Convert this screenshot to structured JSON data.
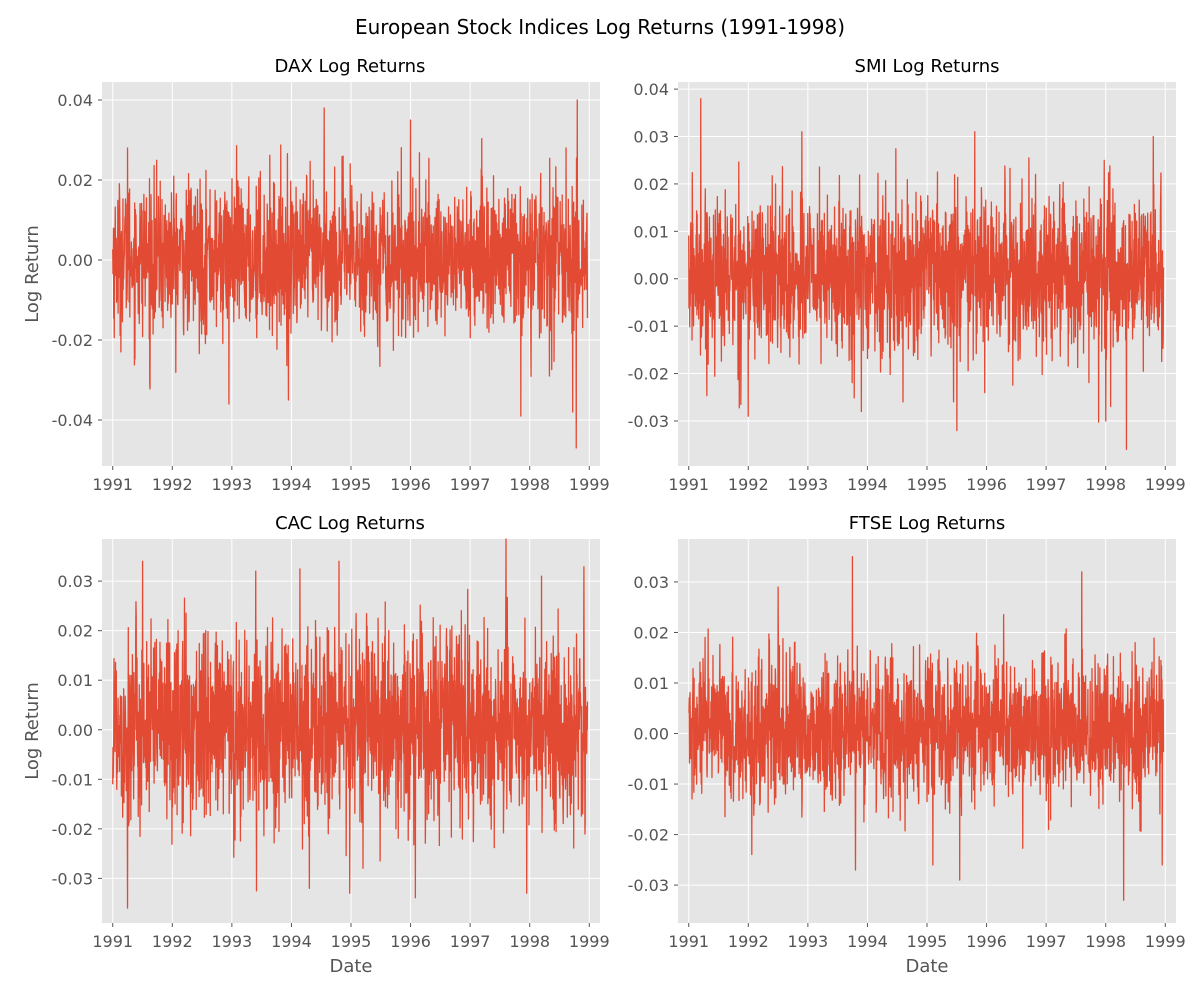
{
  "figure": {
    "title": "European Stock Indices Log Returns (1991-1998)"
  },
  "style": {
    "panel_background": "#e5e5e5",
    "grid_color": "#ffffff",
    "line_color": "#e24a33",
    "text_color": "#555555"
  },
  "chart_data": [
    {
      "type": "line",
      "title": "DAX Log Returns",
      "xlabel": "",
      "ylabel": "Log Return",
      "xlim": [
        1990.82,
        1999.18
      ],
      "ylim": [
        -0.0515,
        0.0445
      ],
      "x_ticks": [
        "1991",
        "1992",
        "1993",
        "1994",
        "1995",
        "1996",
        "1997",
        "1998",
        "1999"
      ],
      "y_ticks": [
        "-0.04",
        "-0.02",
        "0.00",
        "0.02",
        "0.04"
      ],
      "y_tick_values": [
        -0.04,
        -0.02,
        0.0,
        0.02,
        0.04
      ],
      "series": [
        {
          "x_range": [
            1991.0,
            1998.97
          ],
          "n_points": 1860,
          "mean": 0.0006,
          "std": 0.0102,
          "x_at_min_max_style_points": [],
          "extremes": [
            {
              "x": 1991.25,
              "y": 0.028
            },
            {
              "x": 1991.62,
              "y": -0.031
            },
            {
              "x": 1992.95,
              "y": -0.036
            },
            {
              "x": 1993.95,
              "y": -0.035
            },
            {
              "x": 1994.55,
              "y": 0.038
            },
            {
              "x": 1996.0,
              "y": 0.035
            },
            {
              "x": 1997.85,
              "y": -0.039
            },
            {
              "x": 1998.72,
              "y": -0.038
            },
            {
              "x": 1998.8,
              "y": 0.04
            },
            {
              "x": 1998.78,
              "y": -0.047
            }
          ]
        }
      ]
    },
    {
      "type": "line",
      "title": "SMI Log Returns",
      "xlabel": "",
      "ylabel": "",
      "xlim": [
        1990.82,
        1999.18
      ],
      "ylim": [
        -0.0395,
        0.0415
      ],
      "x_ticks": [
        "1991",
        "1992",
        "1993",
        "1994",
        "1995",
        "1996",
        "1997",
        "1998",
        "1999"
      ],
      "y_ticks": [
        "-0.03",
        "-0.02",
        "-0.01",
        "0.00",
        "0.01",
        "0.02",
        "0.03",
        "0.04"
      ],
      "y_tick_values": [
        -0.03,
        -0.02,
        -0.01,
        0.0,
        0.01,
        0.02,
        0.03,
        0.04
      ],
      "series": [
        {
          "x_range": [
            1991.0,
            1998.97
          ],
          "n_points": 1860,
          "mean": 0.0008,
          "std": 0.0092,
          "extremes": [
            {
              "x": 1991.2,
              "y": 0.038
            },
            {
              "x": 1992.0,
              "y": -0.029
            },
            {
              "x": 1992.9,
              "y": 0.031
            },
            {
              "x": 1993.9,
              "y": -0.028
            },
            {
              "x": 1995.5,
              "y": -0.032
            },
            {
              "x": 1995.8,
              "y": 0.031
            },
            {
              "x": 1998.0,
              "y": -0.03
            },
            {
              "x": 1998.35,
              "y": -0.036
            },
            {
              "x": 1998.8,
              "y": 0.03
            }
          ]
        }
      ]
    },
    {
      "type": "line",
      "title": "CAC Log Returns",
      "xlabel": "Date",
      "ylabel": "Log Return",
      "xlim": [
        1990.82,
        1999.18
      ],
      "ylim": [
        -0.039,
        0.0385
      ],
      "x_ticks": [
        "1991",
        "1992",
        "1993",
        "1994",
        "1995",
        "1996",
        "1997",
        "1998",
        "1999"
      ],
      "y_ticks": [
        "-0.03",
        "-0.02",
        "-0.01",
        "0.00",
        "0.01",
        "0.02",
        "0.03"
      ],
      "y_tick_values": [
        -0.03,
        -0.02,
        -0.01,
        0.0,
        0.01,
        0.02,
        0.03
      ],
      "series": [
        {
          "x_range": [
            1991.0,
            1998.97
          ],
          "n_points": 1860,
          "mean": 0.0004,
          "std": 0.0108,
          "extremes": [
            {
              "x": 1991.25,
              "y": -0.036
            },
            {
              "x": 1991.5,
              "y": 0.034
            },
            {
              "x": 1993.4,
              "y": 0.032
            },
            {
              "x": 1994.3,
              "y": -0.032
            },
            {
              "x": 1994.8,
              "y": 0.034
            },
            {
              "x": 1994.98,
              "y": -0.033
            },
            {
              "x": 1997.95,
              "y": -0.033
            },
            {
              "x": 1998.2,
              "y": 0.031
            }
          ]
        }
      ]
    },
    {
      "type": "line",
      "title": "FTSE Log Returns",
      "xlabel": "Date",
      "ylabel": "",
      "xlim": [
        1990.82,
        1999.18
      ],
      "ylim": [
        -0.0375,
        0.0385
      ],
      "x_ticks": [
        "1991",
        "1992",
        "1993",
        "1994",
        "1995",
        "1996",
        "1997",
        "1998",
        "1999"
      ],
      "y_ticks": [
        "-0.03",
        "-0.02",
        "-0.01",
        "0.00",
        "0.01",
        "0.02",
        "0.03"
      ],
      "y_tick_values": [
        -0.03,
        -0.02,
        -0.01,
        0.0,
        0.01,
        0.02,
        0.03
      ],
      "series": [
        {
          "x_range": [
            1991.0,
            1998.97
          ],
          "n_points": 1860,
          "mean": 0.0004,
          "std": 0.0079,
          "extremes": [
            {
              "x": 1992.5,
              "y": 0.029
            },
            {
              "x": 1993.75,
              "y": 0.035
            },
            {
              "x": 1993.8,
              "y": -0.027
            },
            {
              "x": 1995.1,
              "y": -0.026
            },
            {
              "x": 1995.55,
              "y": -0.029
            },
            {
              "x": 1997.6,
              "y": 0.032
            },
            {
              "x": 1998.3,
              "y": -0.033
            },
            {
              "x": 1998.95,
              "y": -0.026
            }
          ]
        }
      ]
    }
  ]
}
